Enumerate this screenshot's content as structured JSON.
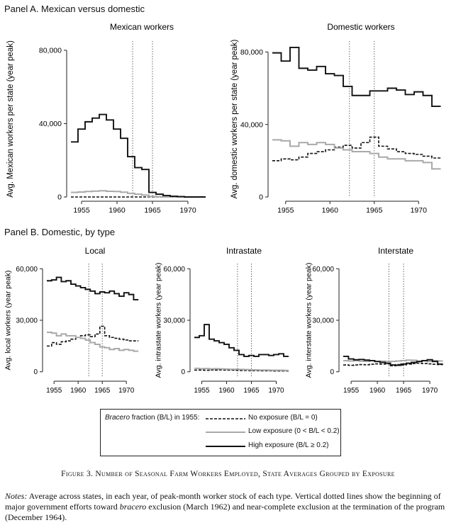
{
  "panel_a_title": "Panel A. Mexican versus domestic",
  "panel_b_title": "Panel B. Domestic, by type",
  "legend": {
    "heading_italic": "Bracero",
    "heading_rest": " fraction (B/L) in 1955:",
    "items": [
      {
        "label": "No exposure (B/L = 0)",
        "style": "dashed",
        "color": "#111111"
      },
      {
        "label": "Low exposure (0 < B/L < 0.2)",
        "style": "solid",
        "color": "#a9a9a9"
      },
      {
        "label": "High exposure (B/L ≥ 0.2)",
        "style": "solid",
        "color": "#111111"
      }
    ]
  },
  "figure_caption": "Figure 3. Number of Seasonal Farm Workers Employed, State Averages Grouped by Exposure",
  "notes": {
    "label": "Notes:",
    "text_1": " Average across states, in each year, of peak-month worker stock of each type. Vertical dotted lines show the beginning of major government efforts toward ",
    "italic": "bracero",
    "text_2": " exclusion (March 1962) and near-complete exclusion at the termination of the program (December 1964)."
  },
  "chart_data": [
    {
      "type": "line",
      "title": "Mexican workers",
      "ylabel": "Avg. Mexican workers per state (year peak)",
      "xlim": [
        1953.5,
        1973.5
      ],
      "ylim": [
        0,
        85000
      ],
      "yticks": [
        0,
        40000,
        80000
      ],
      "ytick_labels": [
        "0",
        "40,000",
        "80,000"
      ],
      "xticks": [
        1955,
        1960,
        1965,
        1970
      ],
      "vlines": [
        1962.2,
        1965.0
      ],
      "x": [
        1954,
        1955,
        1956,
        1957,
        1958,
        1959,
        1960,
        1961,
        1962,
        1963,
        1964,
        1965,
        1966,
        1967,
        1968,
        1969,
        1970,
        1971,
        1972
      ],
      "series": [
        {
          "name": "No exposure (B/L = 0)",
          "values": [
            0,
            0,
            0,
            0,
            0,
            0,
            0,
            0,
            0,
            0,
            0,
            0,
            0,
            0,
            0,
            0,
            0,
            0,
            0
          ]
        },
        {
          "name": "Low exposure (0 < B/L < 0.2)",
          "values": [
            2500,
            2700,
            3000,
            3200,
            3400,
            3100,
            3000,
            2600,
            2000,
            1500,
            1000,
            300,
            100,
            0,
            0,
            0,
            0,
            0,
            0
          ]
        },
        {
          "name": "High exposure (B/L ≥ 0.2)",
          "values": [
            30000,
            37000,
            41000,
            43000,
            45000,
            42000,
            37000,
            32000,
            22000,
            16000,
            15000,
            2500,
            1500,
            800,
            400,
            200,
            0,
            0,
            0
          ]
        }
      ]
    },
    {
      "type": "line",
      "title": "Domestic workers",
      "ylabel": "Avg. domestic workers per state (year peak)",
      "xlim": [
        1953.5,
        1973.5
      ],
      "ylim": [
        0,
        86000
      ],
      "yticks": [
        0,
        40000,
        80000
      ],
      "ytick_labels": [
        "0",
        "40,000",
        "80,000"
      ],
      "xticks": [
        1955,
        1960,
        1965,
        1970
      ],
      "vlines": [
        1962.2,
        1965.0
      ],
      "x": [
        1954,
        1955,
        1956,
        1957,
        1958,
        1959,
        1960,
        1961,
        1962,
        1963,
        1964,
        1965,
        1966,
        1967,
        1968,
        1969,
        1970,
        1971,
        1972
      ],
      "series": [
        {
          "name": "No exposure (B/L = 0)",
          "values": [
            20000,
            21000,
            20500,
            22000,
            24000,
            25000,
            26000,
            27500,
            28500,
            27000,
            30000,
            33000,
            28000,
            26500,
            25000,
            24000,
            23500,
            22500,
            21500
          ]
        },
        {
          "name": "Low exposure (0 < B/L < 0.2)",
          "values": [
            31500,
            31000,
            28000,
            30000,
            29000,
            30000,
            29000,
            27000,
            26000,
            25000,
            25000,
            24000,
            22000,
            21000,
            21000,
            20000,
            20000,
            19000,
            15500
          ]
        },
        {
          "name": "High exposure (B/L ≥ 0.2)",
          "values": [
            79500,
            75000,
            82500,
            71000,
            70000,
            72000,
            68000,
            67000,
            61000,
            56000,
            56000,
            58500,
            58500,
            60000,
            59000,
            56500,
            58000,
            56000,
            50000
          ]
        }
      ]
    },
    {
      "type": "line",
      "title": "Local",
      "ylabel": "Avg. local workers (year peak)",
      "xlim": [
        1953.5,
        1973.5
      ],
      "ylim": [
        -3000,
        63000
      ],
      "yticks": [
        0,
        30000,
        60000
      ],
      "ytick_labels": [
        "0",
        "30,000",
        "60,000"
      ],
      "xticks": [
        1955,
        1960,
        1965,
        1970
      ],
      "vlines": [
        1962.2,
        1965.0
      ],
      "x": [
        1954,
        1955,
        1956,
        1957,
        1958,
        1959,
        1960,
        1961,
        1962,
        1963,
        1964,
        1965,
        1966,
        1967,
        1968,
        1969,
        1970,
        1971,
        1972
      ],
      "series": [
        {
          "name": "No exposure (B/L = 0)",
          "values": [
            15000,
            17000,
            16000,
            17500,
            18000,
            19000,
            20000,
            21000,
            21500,
            20500,
            22000,
            26500,
            21000,
            20000,
            19500,
            19000,
            18500,
            18000,
            18000
          ]
        },
        {
          "name": "Low exposure (0 < B/L < 0.2)",
          "values": [
            23000,
            22500,
            21000,
            22000,
            21000,
            21000,
            20000,
            19500,
            18500,
            17000,
            16000,
            14500,
            14000,
            13000,
            13500,
            12500,
            13000,
            12500,
            12000
          ]
        },
        {
          "name": "High exposure (B/L ≥ 0.2)",
          "values": [
            53000,
            53500,
            55000,
            52500,
            53000,
            51000,
            50000,
            49000,
            48000,
            47000,
            45500,
            46500,
            46000,
            47000,
            45500,
            44000,
            46000,
            45000,
            42000
          ]
        }
      ]
    },
    {
      "type": "line",
      "title": "Intrastate",
      "ylabel": "Avg. intrastate workers (year peak)",
      "xlim": [
        1953.5,
        1973.5
      ],
      "ylim": [
        -3000,
        63000
      ],
      "yticks": [
        0,
        30000,
        60000
      ],
      "ytick_labels": [
        "0",
        "30,000",
        "60,000"
      ],
      "xticks": [
        1955,
        1960,
        1965,
        1970
      ],
      "vlines": [
        1962.2,
        1965.0
      ],
      "x": [
        1954,
        1955,
        1956,
        1957,
        1958,
        1959,
        1960,
        1961,
        1962,
        1963,
        1964,
        1965,
        1966,
        1967,
        1968,
        1969,
        1970,
        1971,
        1972
      ],
      "series": [
        {
          "name": "No exposure (B/L = 0)",
          "values": [
            1000,
            1000,
            900,
            1100,
            1000,
            1100,
            1000,
            1000,
            900,
            800,
            800,
            700,
            700,
            600,
            600,
            600,
            500,
            500,
            500
          ]
        },
        {
          "name": "Low exposure (0 < B/L < 0.2)",
          "values": [
            2000,
            1800,
            1900,
            1700,
            1800,
            1700,
            1600,
            1500,
            1500,
            1400,
            1300,
            1200,
            1100,
            1000,
            1000,
            900,
            900,
            900,
            800
          ]
        },
        {
          "name": "High exposure (B/L ≥ 0.2)",
          "values": [
            20000,
            21000,
            27500,
            19000,
            18000,
            17000,
            16000,
            14000,
            12500,
            10000,
            9000,
            9500,
            9000,
            10000,
            10000,
            9500,
            10000,
            10500,
            9000
          ]
        }
      ]
    },
    {
      "type": "line",
      "title": "Interstate",
      "ylabel": "Avg. interstate workers (year peak)",
      "xlim": [
        1953.5,
        1973.5
      ],
      "ylim": [
        -3000,
        63000
      ],
      "yticks": [
        0,
        30000,
        60000
      ],
      "ytick_labels": [
        "0",
        "30,000",
        "60,000"
      ],
      "xticks": [
        1955,
        1960,
        1965,
        1970
      ],
      "vlines": [
        1962.2,
        1965.0
      ],
      "x": [
        1954,
        1955,
        1956,
        1957,
        1958,
        1959,
        1960,
        1961,
        1962,
        1963,
        1964,
        1965,
        1966,
        1967,
        1968,
        1969,
        1970,
        1971,
        1972
      ],
      "series": [
        {
          "name": "No exposure (B/L = 0)",
          "values": [
            4000,
            3800,
            4000,
            4200,
            4100,
            4400,
            4600,
            4500,
            4600,
            3500,
            4200,
            4000,
            4500,
            4800,
            5000,
            4800,
            4600,
            4400,
            4200
          ]
        },
        {
          "name": "Low exposure (0 < B/L < 0.2)",
          "values": [
            6500,
            6300,
            6500,
            6200,
            6100,
            6500,
            6000,
            6200,
            6000,
            6100,
            6300,
            6500,
            6800,
            6700,
            6200,
            6400,
            6000,
            6500,
            6300
          ]
        },
        {
          "name": "High exposure (B/L ≥ 0.2)",
          "values": [
            9000,
            7500,
            7000,
            7200,
            6800,
            6500,
            6000,
            5500,
            5000,
            4000,
            3800,
            4500,
            5000,
            5500,
            6000,
            6500,
            7000,
            6000,
            4500
          ]
        }
      ]
    }
  ]
}
